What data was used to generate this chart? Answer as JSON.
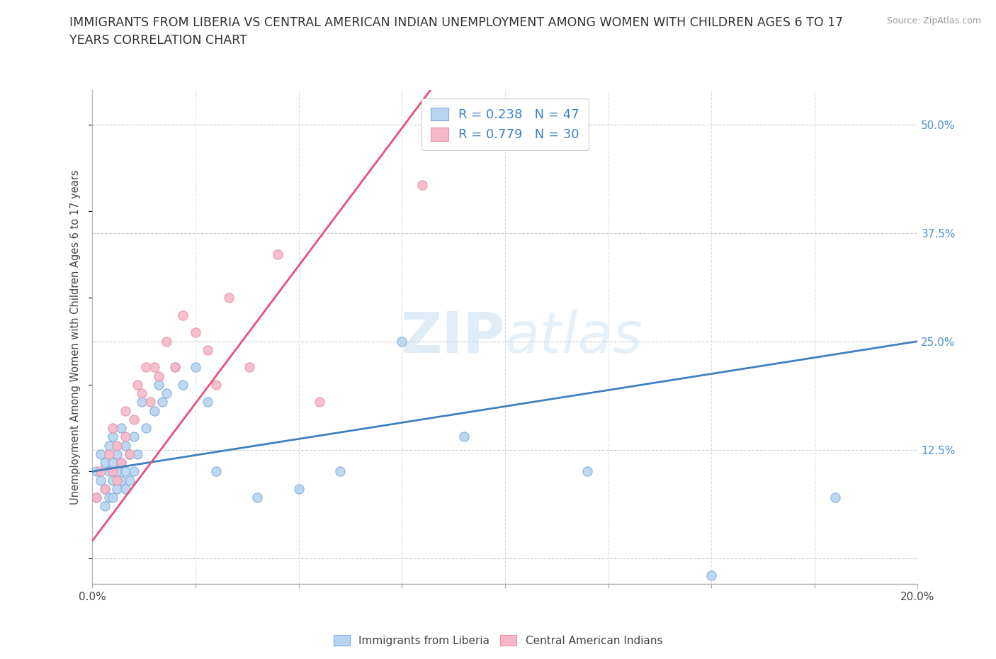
{
  "title": "IMMIGRANTS FROM LIBERIA VS CENTRAL AMERICAN INDIAN UNEMPLOYMENT AMONG WOMEN WITH CHILDREN AGES 6 TO 17\nYEARS CORRELATION CHART",
  "source": "Source: ZipAtlas.com",
  "ylabel": "Unemployment Among Women with Children Ages 6 to 17 years",
  "xlim": [
    0.0,
    0.2
  ],
  "ylim": [
    -0.03,
    0.54
  ],
  "xticks": [
    0.0,
    0.025,
    0.05,
    0.075,
    0.1,
    0.125,
    0.15,
    0.175,
    0.2
  ],
  "xticklabels": [
    "0.0%",
    "",
    "",
    "",
    "",
    "",
    "",
    "",
    "20.0%"
  ],
  "ytick_right": [
    0.0,
    0.125,
    0.25,
    0.375,
    0.5
  ],
  "ytick_right_labels": [
    "",
    "12.5%",
    "25.0%",
    "37.5%",
    "50.0%"
  ],
  "R_liberia": 0.238,
  "N_liberia": 47,
  "R_central": 0.779,
  "N_central": 30,
  "color_liberia": "#b8d4f0",
  "color_central": "#f5b8c8",
  "color_liberia_line": "#4080c0",
  "color_central_line": "#e8507a",
  "color_liberia_dark": "#7aaae0",
  "color_central_dark": "#e890a8",
  "watermark_zip": "ZIP",
  "watermark_atlas": "atlas",
  "liberia_scatter_x": [
    0.001,
    0.001,
    0.002,
    0.002,
    0.003,
    0.003,
    0.003,
    0.004,
    0.004,
    0.004,
    0.005,
    0.005,
    0.005,
    0.005,
    0.006,
    0.006,
    0.006,
    0.007,
    0.007,
    0.007,
    0.008,
    0.008,
    0.008,
    0.009,
    0.009,
    0.01,
    0.01,
    0.011,
    0.012,
    0.013,
    0.015,
    0.016,
    0.017,
    0.018,
    0.02,
    0.022,
    0.025,
    0.028,
    0.03,
    0.04,
    0.05,
    0.06,
    0.075,
    0.09,
    0.12,
    0.15,
    0.18
  ],
  "liberia_scatter_y": [
    0.07,
    0.1,
    0.09,
    0.12,
    0.08,
    0.06,
    0.11,
    0.07,
    0.1,
    0.13,
    0.07,
    0.09,
    0.11,
    0.14,
    0.08,
    0.1,
    0.12,
    0.09,
    0.11,
    0.15,
    0.08,
    0.1,
    0.13,
    0.09,
    0.12,
    0.1,
    0.14,
    0.12,
    0.18,
    0.15,
    0.17,
    0.2,
    0.18,
    0.19,
    0.22,
    0.2,
    0.22,
    0.18,
    0.1,
    0.07,
    0.08,
    0.1,
    0.25,
    0.14,
    0.1,
    -0.02,
    0.07
  ],
  "central_scatter_x": [
    0.001,
    0.002,
    0.003,
    0.004,
    0.005,
    0.005,
    0.006,
    0.006,
    0.007,
    0.008,
    0.008,
    0.009,
    0.01,
    0.011,
    0.012,
    0.013,
    0.014,
    0.015,
    0.016,
    0.018,
    0.02,
    0.022,
    0.025,
    0.028,
    0.03,
    0.033,
    0.038,
    0.045,
    0.055,
    0.08
  ],
  "central_scatter_y": [
    0.07,
    0.1,
    0.08,
    0.12,
    0.1,
    0.15,
    0.09,
    0.13,
    0.11,
    0.14,
    0.17,
    0.12,
    0.16,
    0.2,
    0.19,
    0.22,
    0.18,
    0.22,
    0.21,
    0.25,
    0.22,
    0.28,
    0.26,
    0.24,
    0.2,
    0.3,
    0.22,
    0.35,
    0.18,
    0.43
  ],
  "liberia_line_x": [
    0.0,
    0.2
  ],
  "liberia_line_y": [
    0.1,
    0.25
  ],
  "central_line_x": [
    0.0,
    0.082
  ],
  "central_line_y": [
    0.02,
    0.54
  ]
}
